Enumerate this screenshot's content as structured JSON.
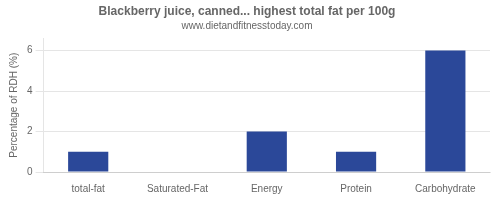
{
  "chart_data": {
    "type": "bar",
    "title": "Blackberry juice, canned... highest total fat per 100g",
    "subtitle": "www.dietandfitnesstoday.com",
    "ylabel": "Percentage of RDH (%)",
    "categories": [
      "total-fat",
      "Saturated-Fat",
      "Energy",
      "Protein",
      "Carbohydrate"
    ],
    "values": [
      1.0,
      0.0,
      2.0,
      1.0,
      6.0
    ],
    "color": "#2b4899",
    "ylim": [
      0,
      6.6
    ],
    "yticks": [
      0,
      2,
      4,
      6
    ],
    "grid": true
  }
}
